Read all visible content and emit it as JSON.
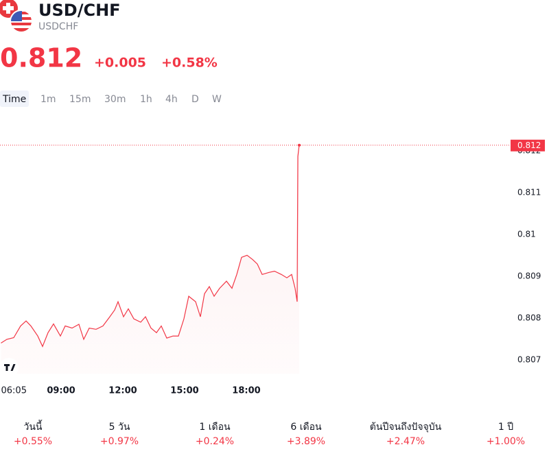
{
  "header": {
    "title": "USD/CHF",
    "symbol": "USDCHF",
    "price": "0.812",
    "change": "+0.005",
    "change_percent": "+0.58%"
  },
  "tabs": [
    "Time",
    "1m",
    "15m",
    "30m",
    "1h",
    "4h",
    "D",
    "W"
  ],
  "chart_data": {
    "type": "line",
    "color": "#f23645",
    "x": [
      6.08,
      6.367,
      6.7,
      7.033,
      7.3,
      7.533,
      7.867,
      8.1,
      8.367,
      8.633,
      8.967,
      9.2,
      9.533,
      9.867,
      10.1,
      10.367,
      10.7,
      11.033,
      11.367,
      11.6,
      11.767,
      12.033,
      12.267,
      12.533,
      12.867,
      13.1,
      13.367,
      13.633,
      13.867,
      14.133,
      14.433,
      14.7,
      14.967,
      15.2,
      15.533,
      15.767,
      15.967,
      16.2,
      16.433,
      16.7,
      17.033,
      17.3,
      17.533,
      17.767,
      18.033,
      18.3,
      18.533,
      18.767,
      19.1,
      19.367,
      19.7,
      19.967,
      20.2,
      20.367,
      20.467,
      20.5,
      20.567
    ],
    "values": [
      0.80739,
      0.80748,
      0.80752,
      0.8078,
      0.80792,
      0.8078,
      0.80756,
      0.80731,
      0.80764,
      0.80785,
      0.80756,
      0.8078,
      0.80775,
      0.80784,
      0.80748,
      0.80775,
      0.80772,
      0.8078,
      0.80802,
      0.80818,
      0.80838,
      0.80802,
      0.80821,
      0.80797,
      0.80789,
      0.80802,
      0.80775,
      0.80764,
      0.8078,
      0.80751,
      0.80756,
      0.80756,
      0.80797,
      0.80851,
      0.80838,
      0.80802,
      0.80857,
      0.80874,
      0.80851,
      0.8087,
      0.80887,
      0.8087,
      0.80903,
      0.80944,
      0.80949,
      0.80939,
      0.80928,
      0.80903,
      0.80908,
      0.80911,
      0.80903,
      0.80895,
      0.80903,
      0.8087,
      0.80838,
      0.81185,
      0.81212
    ],
    "xlim": [
      6.033,
      30.7
    ],
    "xticks": [
      {
        "value": 6.0833,
        "label": "06:05"
      },
      {
        "value": 9,
        "label": "09:00"
      },
      {
        "value": 12,
        "label": "12:00"
      },
      {
        "value": 15,
        "label": "15:00"
      },
      {
        "value": 18,
        "label": "18:00"
      }
    ],
    "ylim": [
      0.80666,
      0.81264
    ],
    "yticks": [
      0.807,
      0.808,
      0.809,
      0.81,
      0.811,
      0.812
    ],
    "last_price": {
      "value": 0.81212,
      "label": "0.812"
    }
  },
  "performance": [
    {
      "label": "วันนี้",
      "value": "+0.55%"
    },
    {
      "label": "5 วัน",
      "value": "+0.97%"
    },
    {
      "label": "1 เดือน",
      "value": "+0.24%"
    },
    {
      "label": "6 เดือน",
      "value": "+3.89%"
    },
    {
      "label": "ต้นปีจนถึงปัจจุบัน",
      "value": "+2.47%"
    },
    {
      "label": "1 ปี",
      "value": "+1.00%"
    }
  ]
}
